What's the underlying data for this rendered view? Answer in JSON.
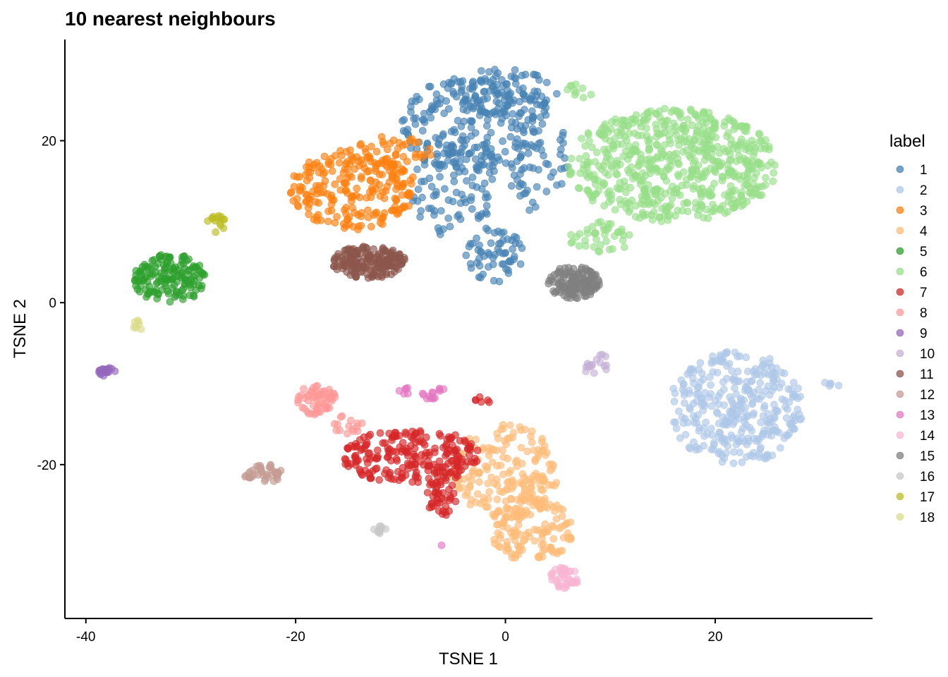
{
  "chart_data": {
    "type": "scatter",
    "title": "10 nearest neighbours",
    "xlabel": "TSNE 1",
    "ylabel": "TSNE 2",
    "xlim": [
      -42,
      35
    ],
    "ylim": [
      -39,
      32.5
    ],
    "x_ticks": [
      -40,
      -20,
      0,
      20
    ],
    "y_ticks": [
      -20,
      0,
      20
    ],
    "grid": false,
    "legend_title": "label",
    "legend_position": "right",
    "series": [
      {
        "name": "1",
        "color": "#4682b4",
        "clusters": [
          {
            "cx": -3,
            "cy": 22,
            "rx": 7,
            "ry": 6,
            "n": 220
          },
          {
            "cx": 0,
            "cy": 26,
            "rx": 5,
            "ry": 3,
            "n": 80
          },
          {
            "cx": -5,
            "cy": 14,
            "rx": 4,
            "ry": 6,
            "n": 80
          },
          {
            "cx": -1,
            "cy": 6,
            "rx": 3,
            "ry": 3.5,
            "n": 60
          },
          {
            "cx": 3,
            "cy": 18,
            "rx": 3,
            "ry": 7,
            "n": 60
          }
        ]
      },
      {
        "name": "2",
        "color": "#aec7e8",
        "clusters": [
          {
            "cx": 22,
            "cy": -13,
            "rx": 6.5,
            "ry": 7,
            "n": 330
          },
          {
            "cx": 31,
            "cy": -10,
            "rx": 1,
            "ry": 0.5,
            "n": 5
          }
        ]
      },
      {
        "name": "3",
        "color": "#ff7f0e",
        "clusters": [
          {
            "cx": -14.5,
            "cy": 14,
            "rx": 6,
            "ry": 5,
            "n": 230
          },
          {
            "cx": -11,
            "cy": 19,
            "rx": 3,
            "ry": 2,
            "n": 30
          },
          {
            "cx": -8,
            "cy": 18.5,
            "rx": 1,
            "ry": 1,
            "n": 6
          }
        ]
      },
      {
        "name": "4",
        "color": "#ffbb78",
        "clusters": [
          {
            "cx": 0,
            "cy": -21,
            "rx": 5,
            "ry": 6,
            "n": 180
          },
          {
            "cx": 2.5,
            "cy": -28,
            "rx": 4,
            "ry": 4,
            "n": 130
          }
        ]
      },
      {
        "name": "5",
        "color": "#2ca02c",
        "clusters": [
          {
            "cx": -32,
            "cy": 3,
            "rx": 3.5,
            "ry": 3,
            "n": 150
          }
        ]
      },
      {
        "name": "6",
        "color": "#98df8a",
        "clusters": [
          {
            "cx": 16,
            "cy": 17,
            "rx": 10,
            "ry": 7,
            "n": 620
          },
          {
            "cx": 9,
            "cy": 8,
            "rx": 3,
            "ry": 2,
            "n": 40
          },
          {
            "cx": 7,
            "cy": 26,
            "rx": 1.5,
            "ry": 1,
            "n": 10
          }
        ]
      },
      {
        "name": "7",
        "color": "#d62728",
        "clusters": [
          {
            "cx": -9,
            "cy": -19,
            "rx": 6.5,
            "ry": 3.5,
            "n": 230
          },
          {
            "cx": -6,
            "cy": -24,
            "rx": 1.5,
            "ry": 2.5,
            "n": 40
          },
          {
            "cx": -2,
            "cy": -12,
            "rx": 1,
            "ry": 0.6,
            "n": 6
          }
        ]
      },
      {
        "name": "8",
        "color": "#ff9896",
        "clusters": [
          {
            "cx": -18,
            "cy": -12,
            "rx": 1.8,
            "ry": 2,
            "n": 60
          },
          {
            "cx": -15,
            "cy": -15,
            "rx": 1.5,
            "ry": 1.2,
            "n": 15
          }
        ]
      },
      {
        "name": "9",
        "color": "#9467bd",
        "clusters": [
          {
            "cx": -38,
            "cy": -8.5,
            "rx": 0.8,
            "ry": 0.6,
            "n": 20
          }
        ]
      },
      {
        "name": "10",
        "color": "#c5b0d5",
        "clusters": [
          {
            "cx": 8.5,
            "cy": -7.5,
            "rx": 1.5,
            "ry": 1.3,
            "n": 18
          }
        ]
      },
      {
        "name": "11",
        "color": "#8c564b",
        "clusters": [
          {
            "cx": -13,
            "cy": 5,
            "rx": 3.5,
            "ry": 2,
            "n": 180
          }
        ]
      },
      {
        "name": "12",
        "color": "#c49c94",
        "clusters": [
          {
            "cx": -23,
            "cy": -21,
            "rx": 2,
            "ry": 1.2,
            "n": 45
          }
        ]
      },
      {
        "name": "13",
        "color": "#e377c2",
        "clusters": [
          {
            "cx": -9.5,
            "cy": -11,
            "rx": 0.8,
            "ry": 0.5,
            "n": 6
          },
          {
            "cx": -7.5,
            "cy": -11.5,
            "rx": 1,
            "ry": 0.5,
            "n": 10
          },
          {
            "cx": -6,
            "cy": -11,
            "rx": 0.5,
            "ry": 0.5,
            "n": 4
          },
          {
            "cx": -6,
            "cy": -30,
            "rx": 0.1,
            "ry": 0.1,
            "n": 1
          }
        ]
      },
      {
        "name": "14",
        "color": "#f7b6d2",
        "clusters": [
          {
            "cx": 5.5,
            "cy": -34,
            "rx": 1.5,
            "ry": 1.3,
            "n": 40
          }
        ]
      },
      {
        "name": "15",
        "color": "#7f7f7f",
        "clusters": [
          {
            "cx": 6.5,
            "cy": 2.5,
            "rx": 2.5,
            "ry": 2,
            "n": 130
          }
        ]
      },
      {
        "name": "16",
        "color": "#c7c7c7",
        "clusters": [
          {
            "cx": -12,
            "cy": -28,
            "rx": 0.6,
            "ry": 0.6,
            "n": 10
          }
        ]
      },
      {
        "name": "17",
        "color": "#bcbd22",
        "clusters": [
          {
            "cx": -27.5,
            "cy": 9.5,
            "rx": 1,
            "ry": 1.3,
            "n": 15
          }
        ]
      },
      {
        "name": "18",
        "color": "#dbdb8d",
        "clusters": [
          {
            "cx": -35,
            "cy": -2.8,
            "rx": 0.5,
            "ry": 0.6,
            "n": 8
          }
        ]
      }
    ]
  }
}
